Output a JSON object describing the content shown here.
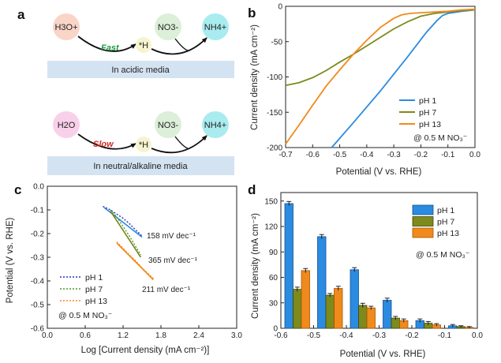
{
  "panels": {
    "a": {
      "letter": "a",
      "acidic": {
        "reactant": "H3O+",
        "rate_label": "Fast",
        "intermediate": "*H",
        "nitrate": "NO3-",
        "product": "NH4+",
        "media_label": "In acidic media"
      },
      "neutral": {
        "reactant": "H2O",
        "rate_label": "Slow",
        "intermediate": "*H",
        "nitrate": "NO3-",
        "product": "NH4+",
        "media_label": "In neutral/alkaline media"
      },
      "colors": {
        "h3o": "#f9d5c8",
        "h2o": "#f9d0ea",
        "h_star": "#f6f4cf",
        "no3": "#dcefd8",
        "nh4": "#a9ecef",
        "banner": "#d4e3f1",
        "fast": "#1e9a3f",
        "slow": "#d42b2b"
      }
    },
    "b": {
      "letter": "b",
      "xlabel": "Potential (V vs. RHE)",
      "ylabel": "Current density (mA cm⁻²)",
      "annotation": "@ 0.5 M NO₃⁻"
    },
    "c": {
      "letter": "c",
      "xlabel": "Log [Current density (mA cm⁻²)]",
      "ylabel": "Potential (V vs. RHE)",
      "annotation": "@ 0.5 M NO₃⁻",
      "slope_labels": [
        "158 mV dec⁻¹",
        "365 mV dec⁻¹",
        "211 mV dec⁻¹"
      ]
    },
    "d": {
      "letter": "d",
      "xlabel": "Potential (V vs. RHE)",
      "ylabel": "Current density (mA cm⁻²)",
      "annotation": "@ 0.5 M NO₃⁻"
    }
  },
  "chart_data": [
    {
      "id": "b",
      "type": "line",
      "title": "",
      "xlabel": "Potential (V vs. RHE)",
      "ylabel": "Current density (mA cm⁻²)",
      "xlim": [
        -0.7,
        0.0
      ],
      "ylim": [
        -200,
        0
      ],
      "xticks": [
        -0.7,
        -0.6,
        -0.5,
        -0.4,
        -0.3,
        -0.2,
        -0.1,
        0.0
      ],
      "xtick_labels": [
        "-0.7",
        "-0.6",
        "-0.5",
        "-0.4",
        "-0.3",
        "-0.2",
        "-0.1",
        "0.0"
      ],
      "yticks": [
        -200,
        -150,
        -100,
        -50,
        0
      ],
      "ytick_labels": [
        "-200",
        "-150",
        "-100",
        "-50",
        "0"
      ],
      "legend": "bottom-right",
      "series": [
        {
          "name": "pH 1",
          "color": "#2b8be0",
          "x": [
            -0.53,
            -0.45,
            -0.35,
            -0.25,
            -0.18,
            -0.14,
            -0.12,
            -0.1,
            -0.05,
            0.0
          ],
          "y": [
            -200,
            -165,
            -120,
            -72,
            -37,
            -20,
            -13,
            -10,
            -7,
            -5
          ]
        },
        {
          "name": "pH 7",
          "color": "#7d8a1c",
          "x": [
            -0.7,
            -0.65,
            -0.6,
            -0.55,
            -0.5,
            -0.45,
            -0.4,
            -0.35,
            -0.3,
            -0.25,
            -0.2,
            -0.15,
            -0.1,
            -0.05,
            0.0
          ],
          "y": [
            -112,
            -108,
            -101,
            -91,
            -79,
            -68,
            -56,
            -44,
            -32,
            -22,
            -14,
            -10,
            -8,
            -6,
            -5
          ]
        },
        {
          "name": "pH 13",
          "color": "#f08a1c",
          "x": [
            -0.7,
            -0.65,
            -0.6,
            -0.55,
            -0.5,
            -0.45,
            -0.4,
            -0.35,
            -0.3,
            -0.27,
            -0.24,
            -0.2,
            -0.15,
            -0.1,
            -0.05,
            0.0
          ],
          "y": [
            -195,
            -168,
            -140,
            -113,
            -90,
            -68,
            -48,
            -30,
            -17,
            -12,
            -10,
            -9,
            -8,
            -7,
            -5,
            -4
          ]
        }
      ]
    },
    {
      "id": "c",
      "type": "line",
      "title": "",
      "xlabel": "Log [Current density (mA cm⁻²)]",
      "ylabel": "Potential (V vs. RHE)",
      "xlim": [
        0.0,
        3.0
      ],
      "ylim": [
        -0.6,
        0.0
      ],
      "xticks": [
        0.0,
        0.6,
        1.2,
        1.8,
        2.4,
        3.0
      ],
      "xtick_labels": [
        "0.0",
        "0.6",
        "1.2",
        "1.8",
        "2.4",
        "3.0"
      ],
      "yticks": [
        -0.6,
        -0.5,
        -0.4,
        -0.3,
        -0.2,
        -0.1,
        0.0
      ],
      "ytick_labels": [
        "-0.6",
        "-0.5",
        "-0.4",
        "-0.3",
        "-0.2",
        "-0.1",
        "0.0"
      ],
      "legend": "bottom-left",
      "series": [
        {
          "name": "pH 1",
          "color": "#2233cc",
          "fit_color": "#2b8be0",
          "x": [
            0.88,
            1.0,
            1.1,
            1.2,
            1.3,
            1.4,
            1.5
          ],
          "y": [
            -0.085,
            -0.1,
            -0.118,
            -0.135,
            -0.158,
            -0.185,
            -0.21
          ],
          "fit_x": [
            0.9,
            1.5
          ],
          "fit_y": [
            -0.09,
            -0.215
          ]
        },
        {
          "name": "pH 7",
          "color": "#4f9a2a",
          "fit_color": "#7d8a1c",
          "x": [
            1.0,
            1.1,
            1.2,
            1.3,
            1.4,
            1.48
          ],
          "y": [
            -0.1,
            -0.13,
            -0.17,
            -0.21,
            -0.255,
            -0.29
          ],
          "fit_x": [
            1.0,
            1.48
          ],
          "fit_y": [
            -0.105,
            -0.3
          ]
        },
        {
          "name": "pH 13",
          "color": "#f08a1c",
          "fit_color": "#f08a1c",
          "x": [
            1.1,
            1.2,
            1.3,
            1.4,
            1.5,
            1.6,
            1.68
          ],
          "y": [
            -0.235,
            -0.262,
            -0.29,
            -0.315,
            -0.345,
            -0.37,
            -0.39
          ],
          "fit_x": [
            1.1,
            1.68
          ],
          "fit_y": [
            -0.24,
            -0.395
          ]
        }
      ]
    },
    {
      "id": "d",
      "type": "bar",
      "title": "",
      "xlabel": "Potential (V vs. RHE)",
      "ylabel": "Current density (mA cm⁻²)",
      "xlim": [
        -0.6,
        0.0
      ],
      "ylim": [
        0,
        160
      ],
      "xticks": [
        -0.6,
        -0.5,
        -0.4,
        -0.3,
        -0.2,
        -0.1,
        0.0
      ],
      "xtick_labels": [
        "-0.6",
        "-0.5",
        "-0.4",
        "-0.3",
        "-0.2",
        "-0.1",
        "0.0"
      ],
      "yticks": [
        0,
        30,
        60,
        90,
        120,
        150
      ],
      "ytick_labels": [
        "0",
        "30",
        "60",
        "90",
        "120",
        "150"
      ],
      "legend": "top-right",
      "categories": [
        -0.55,
        -0.45,
        -0.35,
        -0.25,
        -0.15,
        -0.05
      ],
      "series": [
        {
          "name": "pH 1",
          "color": "#2b8be0",
          "edge": "#13508f",
          "values": [
            147,
            108,
            69,
            33,
            9,
            3
          ],
          "errors": [
            2.5,
            2.5,
            2.5,
            2.5,
            2,
            1.5
          ]
        },
        {
          "name": "pH 7",
          "color": "#7d8a1c",
          "edge": "#3e460b",
          "values": [
            46,
            39,
            27,
            12,
            6,
            2
          ],
          "errors": [
            2.5,
            2,
            2.5,
            2,
            2,
            1
          ]
        },
        {
          "name": "pH 13",
          "color": "#f08a1c",
          "edge": "#a35607",
          "values": [
            68,
            47,
            24,
            9,
            4,
            1
          ],
          "errors": [
            2.5,
            2.5,
            2,
            2,
            1.5,
            1
          ]
        }
      ]
    }
  ]
}
